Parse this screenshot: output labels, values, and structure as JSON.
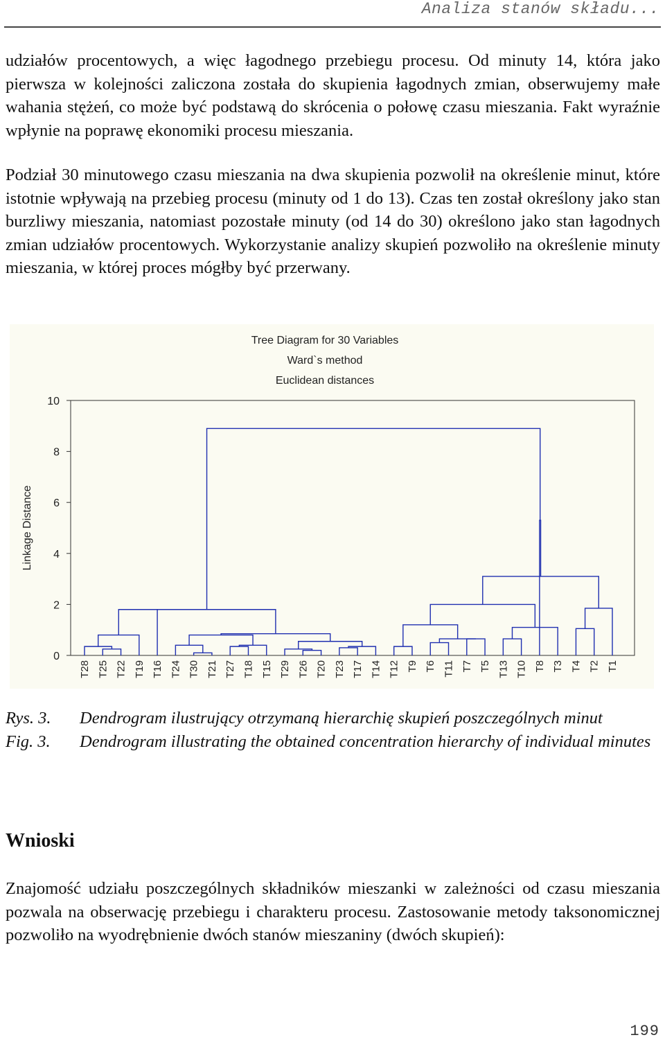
{
  "header": {
    "running_title": "Analiza stanów składu..."
  },
  "paragraphs": {
    "p1": "udziałów procentowych, a więc łagodnego przebiegu procesu. Od minuty 14, która jako pierwsza w kolejności zaliczona została do skupienia łagodnych zmian, obserwujemy małe wahania stężeń, co może być podstawą do skrócenia o połowę czasu mieszania. Fakt wyraźnie wpłynie na poprawę ekonomiki procesu mieszania.",
    "p2": "Podział 30 minutowego czasu mieszania na dwa skupienia pozwolił na określenie minut, które istotnie wpływają na przebieg procesu (minuty od 1 do 13). Czas ten został określony jako stan burzliwy mieszania, natomiast pozostałe minuty (od 14 do 30) określono jako stan łagodnych zmian udziałów procentowych. Wykorzystanie analizy skupień pozwoliło na określenie minuty mieszania, w której proces mógłby być przerwany.",
    "p3": "Znajomość udziału poszczególnych składników mieszanki w zależności od czasu mieszania pozwala na obserwację przebiegu i charakteru procesu. Zastosowanie metody taksonomicznej pozwoliło na wyodrębnienie dwóch stanów mieszaniny (dwóch skupień):"
  },
  "figure": {
    "title_lines": [
      "Tree Diagram for 30 Variables",
      "Ward`s method",
      "Euclidean distances"
    ],
    "background": "#fbfbf2",
    "line_color": "#1f2fb0"
  },
  "chart_data": {
    "type": "dendrogram",
    "ylabel": "Linkage Distance",
    "ylim": [
      0,
      10
    ],
    "yticks": [
      0,
      2,
      4,
      6,
      8,
      10
    ],
    "leaves": [
      "T28",
      "T25",
      "T22",
      "T19",
      "T16",
      "T24",
      "T30",
      "T21",
      "T27",
      "T18",
      "T15",
      "T29",
      "T26",
      "T20",
      "T23",
      "T17",
      "T14",
      "T12",
      "T9",
      "T6",
      "T11",
      "T7",
      "T5",
      "T13",
      "T10",
      "T8",
      "T3",
      "T4",
      "T2",
      "T1"
    ],
    "merges": [
      {
        "a": "T25",
        "b": "T22",
        "height": 0.25
      },
      {
        "a": "T26",
        "b": "T20",
        "height": 0.2
      },
      {
        "a": "T30",
        "b": "T21",
        "height": 0.1
      },
      {
        "a": "T23",
        "b": "T17",
        "height": 0.3
      },
      {
        "a": "T27",
        "b": "T18",
        "height": 0.35
      },
      {
        "a": "T29",
        "b": "T26+T20",
        "height": 0.25
      },
      {
        "a": "T5",
        "b": "T7",
        "height": 0.65
      },
      {
        "a": "T13",
        "b": "T10",
        "height": 0.65
      },
      {
        "a": "T6",
        "b": "T11",
        "height": 0.5
      },
      {
        "a": "T12",
        "b": "T9",
        "height": 0.35
      },
      {
        "a": "T14",
        "b": "T23+T17",
        "height": 0.35
      },
      {
        "a": "T28",
        "b": "T25+T22",
        "height": 0.35
      },
      {
        "a": "T24",
        "b": "T30+T21",
        "height": 0.4
      },
      {
        "a": "T15",
        "b": "T27+T18",
        "height": 0.4
      },
      {
        "a": "T4",
        "b": "T2",
        "height": 1.05
      },
      {
        "a": "T3",
        "b": "T13+T10",
        "height": 1.1
      },
      {
        "a": "T29+T26+T20",
        "b": "T14+T23+T17",
        "height": 0.55
      },
      {
        "a": "T6+T11",
        "b": "T5+T7",
        "height": 0.65
      },
      {
        "a": "T28+T25+T22",
        "b": "T19",
        "height": 0.8
      },
      {
        "a": "T24+T30+T21",
        "b": "T15+T27+T18",
        "height": 0.8
      },
      {
        "a": "T12+T9",
        "b": "T6+T11+T5+T7",
        "height": 1.2
      },
      {
        "a": "T1",
        "b": "T4+T2",
        "height": 1.85
      },
      {
        "a": "T24+T30+T21+T15+T27+T18",
        "b": "T29+T26+T20+T14+T23+T17",
        "height": 0.85
      },
      {
        "a": "T28+T25+T22+T19",
        "b": "T16",
        "height": 1.8
      },
      {
        "a": "T12+T9+T6+T11+T5+T7",
        "b": "T3+T13+T10",
        "height": 2.0
      },
      {
        "a": "T28+T25+T22+T19+T16",
        "b": "T24+T30+T21+T15+T27+T18+T29+T26+T20+T14+T23+T17",
        "height": 1.8
      },
      {
        "a": "T12+T9+T6+T11+T5+T7+T3+T13+T10",
        "b": "T1+T4+T2",
        "height": 3.1
      },
      {
        "a": "T12+T9+T6+T11+T5+T7+T3+T13+T10+T1+T4+T2",
        "b": "T8",
        "height": 5.3
      },
      {
        "a": "T28+T25+T22+T19+T16+T24+T30+T21+T15+T27+T18+T29+T26+T20+T14+T23+T17",
        "b": "T12+T9+T6+T11+T5+T7+T3+T13+T10+T1+T4+T2+T8",
        "height": 8.9
      }
    ]
  },
  "caption": {
    "pl_label": "Rys. 3.",
    "pl_text": "Dendrogram ilustrujący otrzymaną hierarchię skupień poszczególnych minut",
    "en_label": "Fig. 3.",
    "en_text": "Dendrogram illustrating the obtained concentration hierarchy of individual minutes"
  },
  "section": {
    "heading": "Wnioski"
  },
  "footer": {
    "page_number": "199"
  }
}
